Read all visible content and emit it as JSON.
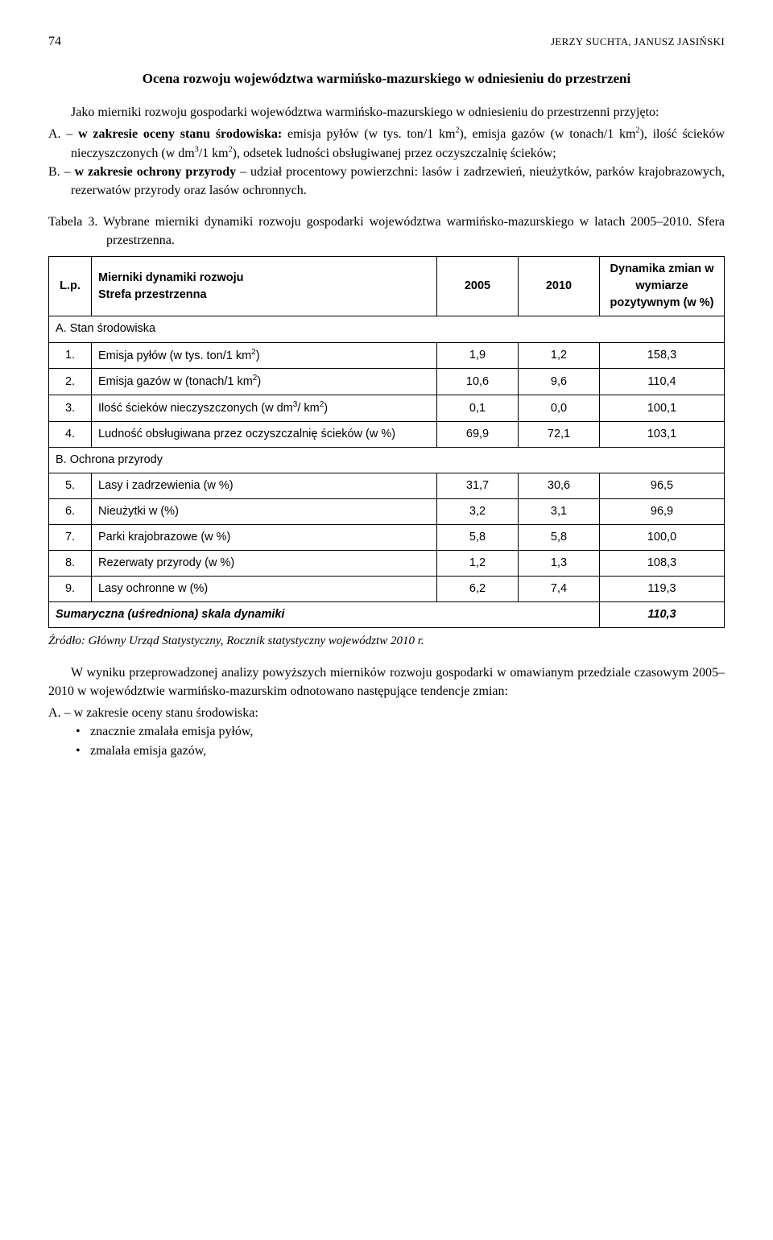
{
  "header": {
    "page_number": "74",
    "running_head": "JERZY SUCHTA, JANUSZ JASIŃSKI"
  },
  "section_title": "Ocena rozwoju województwa warmińsko-mazurskiego w odniesieniu do przestrzeni",
  "intro_para": "Jako mierniki rozwoju gospodarki województwa warmińsko-mazurskiego w odniesieniu do przestrzenni przyjęto:",
  "criteria": [
    {
      "marker": "A.",
      "text": " – w zakresie oceny stanu środowiska: emisja pyłów (w tys. ton/1 km²), emisja gazów (w tonach/1 km²), ilość ścieków nieczyszczonych (w dm³/1 km²), odsetek ludności obsługiwanej przez oczyszczalnię ścieków;"
    },
    {
      "marker": "B.",
      "text": " – w zakresie ochrony przyrody – udział procentowy powierzchni: lasów i zadrzewień, nieużytków, parków krajobrazowych, rezerwatów przyrody oraz lasów ochronnych."
    }
  ],
  "table_caption_label": "Tabela 3.",
  "table_caption_text": " Wybrane mierniki dynamiki rozwoju gospodarki województwa warmińsko-mazurskiego w latach 2005–2010. Sfera przestrzenna.",
  "table": {
    "headers": {
      "lp": "L.p.",
      "metric": "Mierniki dynamiki rozwoju\nStrefa przestrzenna",
      "y2005": "2005",
      "y2010": "2010",
      "dyn": "Dynamika zmian w wymiarze pozytywnym (w %)"
    },
    "section_a": "A. Stan środowiska",
    "rows_a": [
      {
        "lp": "1.",
        "metric": "Emisja pyłów (w tys. ton/1 km²)",
        "v2005": "1,9",
        "v2010": "1,2",
        "dyn": "158,3"
      },
      {
        "lp": "2.",
        "metric": "Emisja gazów w (tonach/1 km²)",
        "v2005": "10,6",
        "v2010": "9,6",
        "dyn": "110,4"
      },
      {
        "lp": "3.",
        "metric": "Ilość ścieków nieczyszczonych (w dm³/ km²)",
        "v2005": "0,1",
        "v2010": "0,0",
        "dyn": "100,1"
      },
      {
        "lp": "4.",
        "metric": "Ludność obsługiwana przez oczyszczalnię ścieków (w %)",
        "v2005": "69,9",
        "v2010": "72,1",
        "dyn": "103,1"
      }
    ],
    "section_b": "B. Ochrona przyrody",
    "rows_b": [
      {
        "lp": "5.",
        "metric": "Lasy i zadrzewienia (w %)",
        "v2005": "31,7",
        "v2010": "30,6",
        "dyn": "96,5"
      },
      {
        "lp": "6.",
        "metric": "Nieużytki w (%)",
        "v2005": "3,2",
        "v2010": "3,1",
        "dyn": "96,9"
      },
      {
        "lp": "7.",
        "metric": "Parki krajobrazowe (w %)",
        "v2005": "5,8",
        "v2010": "5,8",
        "dyn": "100,0"
      },
      {
        "lp": "8.",
        "metric": "Rezerwaty przyrody (w %)",
        "v2005": "1,2",
        "v2010": "1,3",
        "dyn": "108,3"
      },
      {
        "lp": "9.",
        "metric": "Lasy ochronne w (%)",
        "v2005": "6,2",
        "v2010": "7,4",
        "dyn": "119,3"
      }
    ],
    "summary": {
      "label": "Sumaryczna (uśredniona) skala dynamiki",
      "value": "110,3"
    }
  },
  "source": "Źródło: Główny Urząd Statystyczny, Rocznik statystyczny województw 2010 r.",
  "closing_para": "W wyniku przeprowadzonej analizy powyższych mierników rozwoju gospodarki w omawianym przedziale czasowym 2005–2010 w województwie warmińsko-mazurskim odnotowano następujące tendencje zmian:",
  "closing_item_marker": "A.",
  "closing_item_text": " – w zakresie oceny stanu środowiska:",
  "bullets": [
    "znacznie zmalała emisja pyłów,",
    "zmalała emisja gazów,"
  ]
}
